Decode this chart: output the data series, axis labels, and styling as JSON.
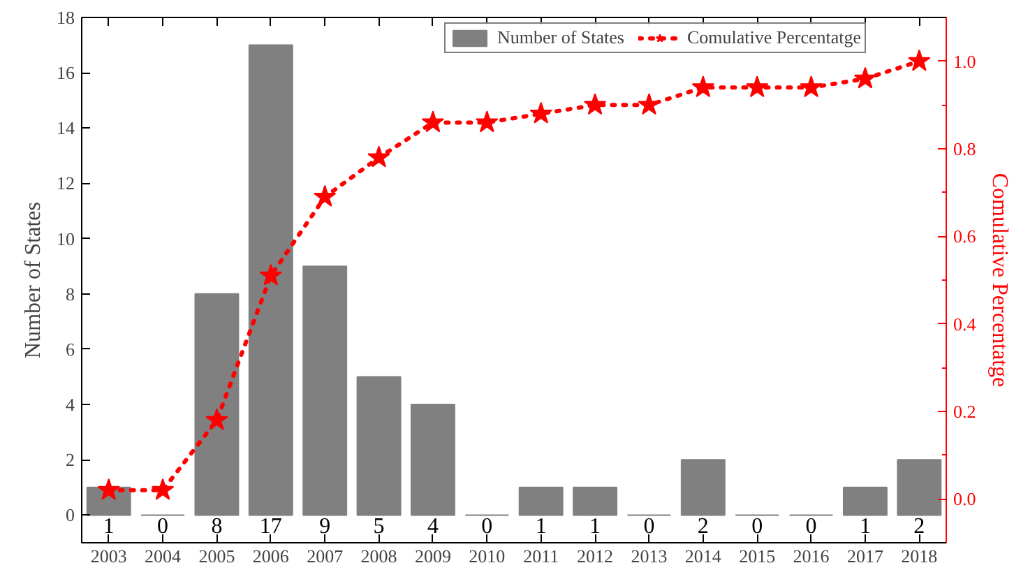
{
  "chart_data": {
    "type": "bar",
    "xlabel": null,
    "ylabel": "Number of States",
    "y2label": "Comulative Percentatge",
    "categories": [
      "2003",
      "2004",
      "2005",
      "2006",
      "2007",
      "2008",
      "2009",
      "2010",
      "2011",
      "2012",
      "2013",
      "2014",
      "2015",
      "2016",
      "2017",
      "2018"
    ],
    "series": [
      {
        "name": "Number of States",
        "color": "#808080",
        "values": [
          1,
          0,
          8,
          17,
          9,
          5,
          4,
          0,
          1,
          1,
          0,
          2,
          0,
          0,
          1,
          2
        ],
        "value_labels": [
          "1",
          "0",
          "8",
          "17",
          "9",
          "5",
          "4",
          "0",
          "1",
          "1",
          "0",
          "2",
          "0",
          "0",
          "1",
          "2"
        ]
      },
      {
        "name": "Comulative Percentatge",
        "type": "line",
        "axis": "y2",
        "color": "#ff0000",
        "marker": "star",
        "line_style": "dotted",
        "values": [
          0.02,
          0.02,
          0.18,
          0.51,
          0.69,
          0.78,
          0.86,
          0.86,
          0.88,
          0.9,
          0.9,
          0.94,
          0.94,
          0.94,
          0.96,
          1.0
        ]
      }
    ],
    "ylim": [
      -1,
      18
    ],
    "yticks": [
      0,
      2,
      4,
      6,
      8,
      10,
      12,
      14,
      16,
      18
    ],
    "y2lim": [
      -0.1,
      1.1
    ],
    "y2ticks": [
      {
        "value": 0,
        "label": "0.0"
      },
      {
        "value": 0.2,
        "label": "0.2"
      },
      {
        "value": 0.4,
        "label": "0.4"
      },
      {
        "value": 0.6,
        "label": "0.6"
      },
      {
        "value": 0.8,
        "label": "0.8"
      },
      {
        "value": 1,
        "label": "1.0"
      }
    ],
    "grid": false,
    "legend": "top right"
  }
}
